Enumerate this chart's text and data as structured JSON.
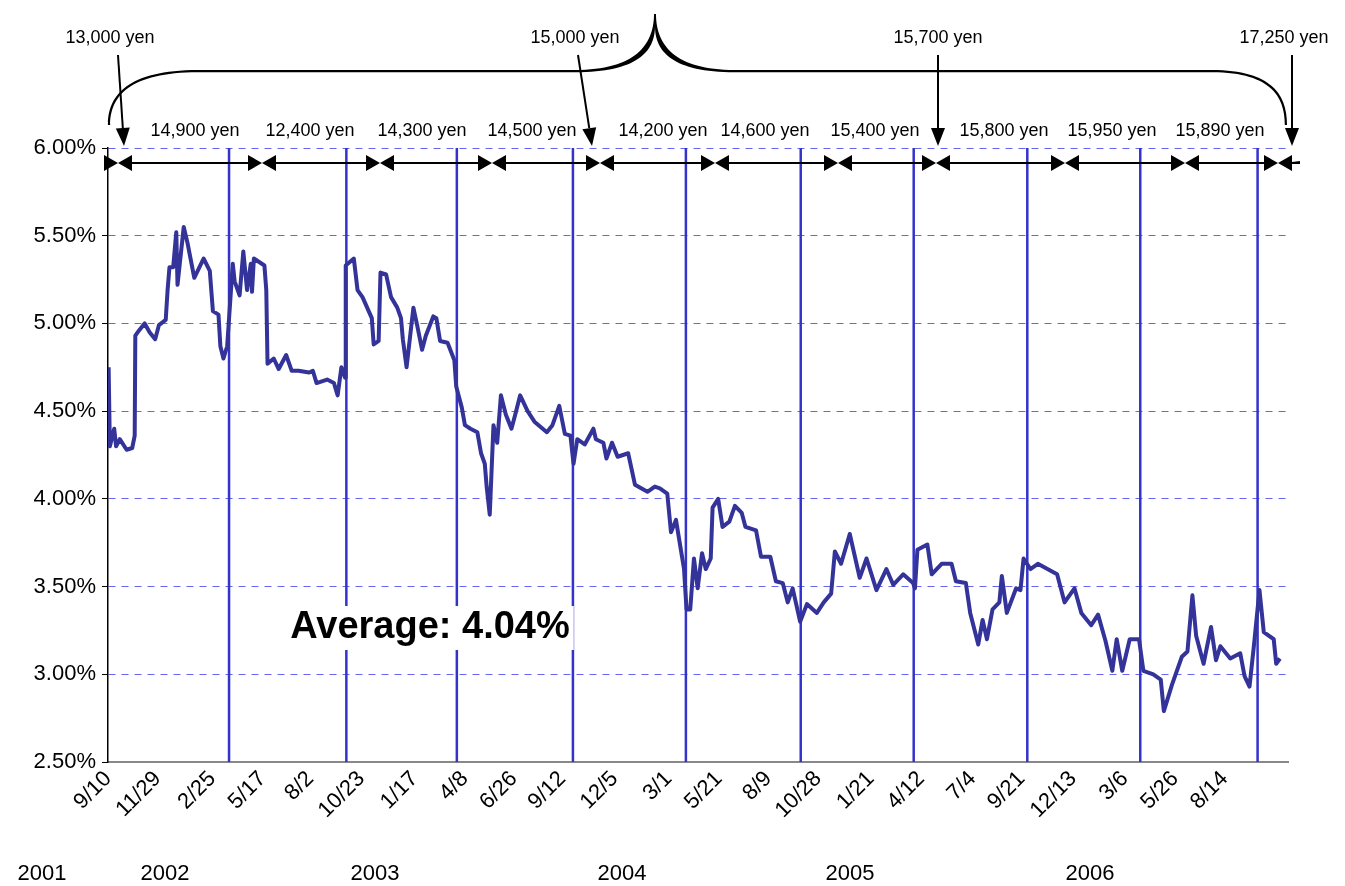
{
  "chart_data": {
    "type": "line",
    "xlim": [
      "2001-09-10",
      "2006-11-24"
    ],
    "xticks": [
      {
        "value": "2001-09-10",
        "label": "9/10"
      },
      {
        "value": "2001-11-29",
        "label": "11/29"
      },
      {
        "value": "2002-02-25",
        "label": "2/25"
      },
      {
        "value": "2002-05-17",
        "label": "5/17"
      },
      {
        "value": "2002-08-02",
        "label": "8/2"
      },
      {
        "value": "2002-10-23",
        "label": "10/23"
      },
      {
        "value": "2003-01-17",
        "label": "1/17"
      },
      {
        "value": "2003-04-08",
        "label": "4/8"
      },
      {
        "value": "2003-06-26",
        "label": "6/26"
      },
      {
        "value": "2003-09-12",
        "label": "9/12"
      },
      {
        "value": "2003-12-05",
        "label": "12/5"
      },
      {
        "value": "2004-03-01",
        "label": "3/1"
      },
      {
        "value": "2004-05-21",
        "label": "5/21"
      },
      {
        "value": "2004-08-09",
        "label": "8/9"
      },
      {
        "value": "2004-10-28",
        "label": "10/28"
      },
      {
        "value": "2005-01-21",
        "label": "1/21"
      },
      {
        "value": "2005-04-12",
        "label": "4/12"
      },
      {
        "value": "2005-07-04",
        "label": "7/4"
      },
      {
        "value": "2005-09-21",
        "label": "9/21"
      },
      {
        "value": "2005-12-13",
        "label": "12/13"
      },
      {
        "value": "2006-03-06",
        "label": "3/6"
      },
      {
        "value": "2006-05-26",
        "label": "5/26"
      },
      {
        "value": "2006-08-14",
        "label": "8/14"
      }
    ],
    "ylim": [
      2.5,
      6
    ],
    "yticks": [
      {
        "value": 2.5,
        "label": "2.50%"
      },
      {
        "value": 3,
        "label": "3.00%"
      },
      {
        "value": 3.5,
        "label": "3.50%"
      },
      {
        "value": 4,
        "label": "4.00%"
      },
      {
        "value": 4.5,
        "label": "4.50%"
      },
      {
        "value": 5,
        "label": "5.00%"
      },
      {
        "value": 5.5,
        "label": "5.50%"
      },
      {
        "value": 6,
        "label": "6.00%"
      }
    ],
    "grid": "y",
    "series": [
      {
        "color": "#333399",
        "x": [
          "2001-09-11",
          "2001-09-13",
          "2001-09-20",
          "2001-09-23",
          "2001-09-29",
          "2001-10-10",
          "2001-10-19",
          "2001-10-23",
          "2001-10-24",
          "2001-10-30",
          "2001-11-08",
          "2001-11-16",
          "2001-11-25",
          "2001-12-01",
          "2001-12-12",
          "2001-12-15",
          "2001-12-18",
          "2001-12-24",
          "2001-12-29",
          "2001-12-31",
          "2002-01-10",
          "2002-01-16",
          "2002-01-27",
          "2002-02-11",
          "2002-02-21",
          "2002-02-26",
          "2002-03-07",
          "2002-03-10",
          "2002-03-15",
          "2002-03-21",
          "2002-03-30",
          "2002-04-02",
          "2002-04-10",
          "2002-04-16",
          "2002-04-22",
          "2002-04-28",
          "2002-04-30",
          "2002-05-03",
          "2002-05-20",
          "2002-05-23",
          "2002-05-25",
          "2002-06-04",
          "2002-06-12",
          "2002-06-24",
          "2002-07-03",
          "2002-07-14",
          "2002-07-31",
          "2002-08-06",
          "2002-08-12",
          "2002-08-29",
          "2002-09-09",
          "2002-09-15",
          "2002-09-21",
          "2002-09-27",
          "2002-09-28",
          "2002-10-11",
          "2002-10-17",
          "2002-10-25",
          "2002-11-09",
          "2002-11-12",
          "2002-11-20",
          "2002-11-23",
          "2002-12-02",
          "2002-12-10",
          "2002-12-20",
          "2002-12-26",
          "2002-12-29",
          "2003-01-04",
          "2003-01-15",
          "2003-01-21",
          "2003-01-29",
          "2003-02-04",
          "2003-02-16",
          "2003-02-21",
          "2003-02-27",
          "2003-03-11",
          "2003-03-22",
          "2003-03-25",
          "2003-04-03",
          "2003-04-08",
          "2003-04-17",
          "2003-04-28",
          "2003-05-04",
          "2003-05-10",
          "2003-05-13",
          "2003-05-18",
          "2003-05-24",
          "2003-05-30",
          "2003-06-05",
          "2003-06-13",
          "2003-06-22",
          "2003-06-28",
          "2003-07-06",
          "2003-07-18",
          "2003-07-29",
          "2003-08-18",
          "2003-08-27",
          "2003-09-07",
          "2003-09-16",
          "2003-09-25",
          "2003-09-30",
          "2003-10-06",
          "2003-10-18",
          "2003-11-01",
          "2003-11-05",
          "2003-11-17",
          "2003-11-22",
          "2003-12-01",
          "2003-12-10",
          "2003-12-27",
          "2004-01-07",
          "2004-01-27",
          "2004-02-08",
          "2004-02-16",
          "2004-02-28",
          "2004-03-05",
          "2004-03-13",
          "2004-03-26",
          "2004-03-30",
          "2004-04-05",
          "2004-04-11",
          "2004-04-17",
          "2004-04-24",
          "2004-04-30",
          "2004-05-08",
          "2004-05-11",
          "2004-05-20",
          "2004-05-27",
          "2004-06-07",
          "2004-06-16",
          "2004-06-27",
          "2004-07-03",
          "2004-07-20",
          "2004-07-28",
          "2004-08-12",
          "2004-08-21",
          "2004-09-01",
          "2004-09-09",
          "2004-09-17",
          "2004-09-29",
          "2004-10-10",
          "2004-10-26",
          "2004-11-06",
          "2004-11-18",
          "2004-11-24",
          "2004-12-04",
          "2004-12-18",
          "2005-01-03",
          "2005-01-14",
          "2005-01-30",
          "2005-02-15",
          "2005-02-26",
          "2005-03-14",
          "2005-03-30",
          "2005-04-02",
          "2005-04-06",
          "2005-04-22",
          "2005-04-29",
          "2005-05-15",
          "2005-05-31",
          "2005-06-07",
          "2005-06-23",
          "2005-06-30",
          "2005-07-13",
          "2005-07-20",
          "2005-07-27",
          "2005-08-05",
          "2005-08-16",
          "2005-08-20",
          "2005-08-28",
          "2005-09-12",
          "2005-09-19",
          "2005-09-24",
          "2005-10-05",
          "2005-10-17",
          "2005-11-17",
          "2005-11-29",
          "2005-12-15",
          "2005-12-26",
          "2006-01-11",
          "2006-01-22",
          "2006-02-03",
          "2006-02-14",
          "2006-02-21",
          "2006-03-02",
          "2006-03-14",
          "2006-03-29",
          "2006-04-05",
          "2006-04-21",
          "2006-05-03",
          "2006-05-08",
          "2006-05-21",
          "2006-06-06",
          "2006-06-15",
          "2006-06-23",
          "2006-06-29",
          "2006-07-11",
          "2006-07-23",
          "2006-07-31",
          "2006-08-07",
          "2006-08-23",
          "2006-09-08",
          "2006-09-15",
          "2006-09-23",
          "2006-09-30",
          "2006-10-09",
          "2006-10-16",
          "2006-11-01",
          "2006-11-05",
          "2006-11-11"
        ],
        "values": [
          4.75,
          4.3,
          4.4,
          4.3,
          4.34,
          4.28,
          4.29,
          4.36,
          4.93,
          4.96,
          5.0,
          4.95,
          4.91,
          4.99,
          5.02,
          5.19,
          5.32,
          5.32,
          5.52,
          5.22,
          5.55,
          5.46,
          5.26,
          5.37,
          5.3,
          5.07,
          5.05,
          4.87,
          4.8,
          4.87,
          5.34,
          5.24,
          5.16,
          5.41,
          5.19,
          5.34,
          5.18,
          5.37,
          5.33,
          5.19,
          4.77,
          4.8,
          4.74,
          4.82,
          4.73,
          4.73,
          4.72,
          4.73,
          4.66,
          4.68,
          4.66,
          4.59,
          4.75,
          4.69,
          5.33,
          5.37,
          5.19,
          5.15,
          5.03,
          4.88,
          4.9,
          5.29,
          5.28,
          5.15,
          5.09,
          5.03,
          4.91,
          4.75,
          5.09,
          4.99,
          4.85,
          4.93,
          5.04,
          5.03,
          4.9,
          4.89,
          4.79,
          4.64,
          4.52,
          4.42,
          4.4,
          4.38,
          4.26,
          4.2,
          4.07,
          3.91,
          4.42,
          4.32,
          4.59,
          4.48,
          4.4,
          4.48,
          4.59,
          4.5,
          4.44,
          4.38,
          4.42,
          4.53,
          4.37,
          4.36,
          4.2,
          4.34,
          4.31,
          4.4,
          4.34,
          4.32,
          4.23,
          4.32,
          4.24,
          4.26,
          4.08,
          4.04,
          4.07,
          4.06,
          4.03,
          3.81,
          3.88,
          3.6,
          3.37,
          3.37,
          3.66,
          3.49,
          3.69,
          3.6,
          3.66,
          3.95,
          4.0,
          3.84,
          3.87,
          3.96,
          3.92,
          3.84,
          3.82,
          3.67,
          3.67,
          3.53,
          3.52,
          3.41,
          3.49,
          3.3,
          3.4,
          3.35,
          3.41,
          3.46,
          3.7,
          3.63,
          3.8,
          3.55,
          3.66,
          3.48,
          3.6,
          3.51,
          3.57,
          3.52,
          3.49,
          3.71,
          3.74,
          3.57,
          3.63,
          3.63,
          3.53,
          3.52,
          3.35,
          3.17,
          3.31,
          3.2,
          3.37,
          3.41,
          3.56,
          3.35,
          3.49,
          3.48,
          3.66,
          3.6,
          3.63,
          3.57,
          3.41,
          3.49,
          3.35,
          3.28,
          3.34,
          3.19,
          3.02,
          3.2,
          3.02,
          3.2,
          3.2,
          3.02,
          3.0,
          2.97,
          2.79,
          2.94,
          3.1,
          3.13,
          3.45,
          3.22,
          3.06,
          3.27,
          3.08,
          3.16,
          3.09,
          3.12,
          2.99,
          2.93,
          3.16,
          3.48,
          3.24,
          3.2,
          3.06,
          3.09
        ]
      }
    ],
    "ref_lines": [
      {
        "axis": "x",
        "value": "2002-03-24",
        "color": "#3333cc"
      },
      {
        "axis": "x",
        "value": "2002-09-29",
        "color": "#3333cc"
      },
      {
        "axis": "x",
        "value": "2003-03-26",
        "color": "#3333cc"
      },
      {
        "axis": "x",
        "value": "2003-09-29",
        "color": "#3333cc"
      },
      {
        "axis": "x",
        "value": "2004-03-29",
        "color": "#3333cc"
      },
      {
        "axis": "x",
        "value": "2004-09-30",
        "color": "#3333cc"
      },
      {
        "axis": "x",
        "value": "2005-03-31",
        "color": "#3333cc"
      },
      {
        "axis": "x",
        "value": "2005-09-30",
        "color": "#3333cc"
      },
      {
        "axis": "x",
        "value": "2006-03-31",
        "color": "#3333cc"
      },
      {
        "axis": "x",
        "value": "2006-10-06",
        "color": "#3333cc"
      }
    ],
    "annotations": [
      "13,000 yen",
      "14,900 yen",
      "12,400 yen",
      "14,300 yen",
      "14,500 yen",
      "15,000 yen",
      "14,200 yen",
      "14,600 yen",
      "15,400 yen",
      "15,700 yen",
      "15,800 yen",
      "15,950 yen",
      "15,890 yen",
      "17,250 yen",
      "Average: 4.04%",
      "2001",
      "2002",
      "2003",
      "2004",
      "2005",
      "2006"
    ]
  }
}
